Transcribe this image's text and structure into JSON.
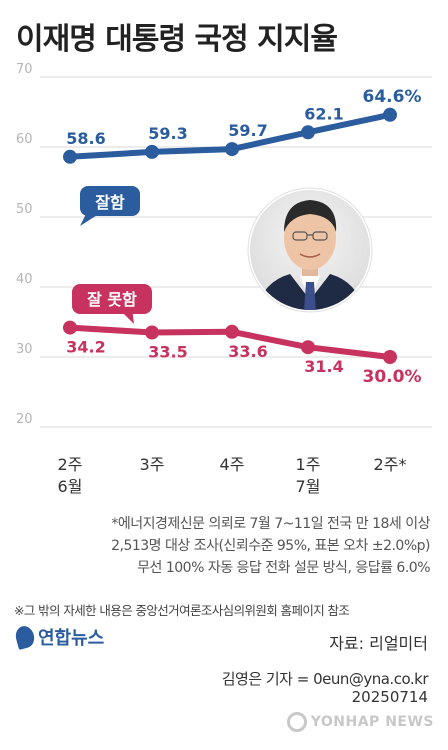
{
  "title": "이재명 대통령 국정 지지율",
  "chart_data": {
    "type": "line",
    "categories": [
      "2주\n6월",
      "3주",
      "4주",
      "1주\n7월",
      "2주*"
    ],
    "series": [
      {
        "name": "잘함",
        "values": [
          58.6,
          59.3,
          59.7,
          62.1,
          64.6
        ],
        "labels": [
          "58.6",
          "59.3",
          "59.7",
          "62.1",
          "64.6%"
        ],
        "color": "#2a5c9e"
      },
      {
        "name": "잘 못함",
        "values": [
          34.2,
          33.5,
          33.6,
          31.4,
          30.0
        ],
        "labels": [
          "34.2",
          "33.5",
          "33.6",
          "31.4",
          "30.0%"
        ],
        "color": "#c7325e"
      }
    ],
    "yticks": [
      70,
      60,
      50,
      40,
      30,
      20
    ],
    "ylim": [
      20,
      70
    ],
    "grid": true
  },
  "notes": [
    "*에너지경제신문 의뢰로 7월 7~11일 전국 만 18세 이상",
    "2,513명 대상 조사(신뢰수준 95%, 표본 오차 ±2.0%p)",
    "무선 100% 자동 응답 전화 설문 방식, 응답률 6.0%"
  ],
  "footnote": "※그 밖의 자세한 내용은 중앙선거여론조사심의위원회 홈페이지 참조",
  "logo_text": "연합뉴스",
  "source": "자료: 리얼미터",
  "reporter": "김영은 기자 = 0eun@yna.co.kr",
  "date": "20250714",
  "watermark": "YONHAP NEWS"
}
